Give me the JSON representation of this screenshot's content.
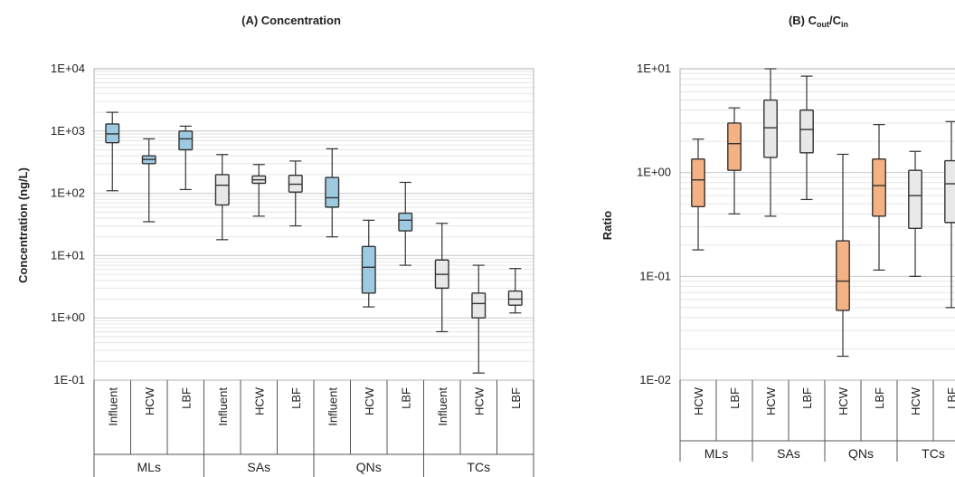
{
  "chart_data": [
    {
      "type": "boxplot",
      "title": "(A) Concentration",
      "ylabel": "Concentration (ng/L)",
      "yscale": "log",
      "ylim": [
        0.1,
        10000
      ],
      "yticks": [
        "1E+04",
        "1E+03",
        "1E+02",
        "1E+01",
        "1E+00",
        "1E-01"
      ],
      "groups": [
        "MLs",
        "SAs",
        "QNs",
        "TCs"
      ],
      "categories": [
        "Influent",
        "HCW",
        "LBF"
      ],
      "colors": {
        "highlight": "#9ecae1",
        "other": "#e8e8e8",
        "stroke": "#333333"
      },
      "boxes": [
        {
          "group": "MLs",
          "category": "Influent",
          "min": 110,
          "q1": 650,
          "median": 900,
          "q3": 1300,
          "max": 2000,
          "highlight": true
        },
        {
          "group": "MLs",
          "category": "HCW",
          "min": 35,
          "q1": 300,
          "median": 350,
          "q3": 400,
          "max": 750,
          "highlight": true
        },
        {
          "group": "MLs",
          "category": "LBF",
          "min": 115,
          "q1": 500,
          "median": 750,
          "q3": 1000,
          "max": 1200,
          "highlight": true
        },
        {
          "group": "SAs",
          "category": "Influent",
          "min": 18,
          "q1": 65,
          "median": 135,
          "q3": 200,
          "max": 420,
          "highlight": false
        },
        {
          "group": "SAs",
          "category": "HCW",
          "min": 43,
          "q1": 145,
          "median": 165,
          "q3": 190,
          "max": 290,
          "highlight": false
        },
        {
          "group": "SAs",
          "category": "LBF",
          "min": 30,
          "q1": 105,
          "median": 140,
          "q3": 195,
          "max": 330,
          "highlight": false
        },
        {
          "group": "QNs",
          "category": "Influent",
          "min": 20,
          "q1": 60,
          "median": 85,
          "q3": 180,
          "max": 520,
          "highlight": true
        },
        {
          "group": "QNs",
          "category": "HCW",
          "min": 1.5,
          "q1": 2.5,
          "median": 6.5,
          "q3": 14,
          "max": 37,
          "highlight": true
        },
        {
          "group": "QNs",
          "category": "LBF",
          "min": 7,
          "q1": 25,
          "median": 37,
          "q3": 48,
          "max": 150,
          "highlight": true
        },
        {
          "group": "TCs",
          "category": "Influent",
          "min": 0.6,
          "q1": 3,
          "median": 5,
          "q3": 8.5,
          "max": 33,
          "highlight": false
        },
        {
          "group": "TCs",
          "category": "HCW",
          "min": 0.13,
          "q1": 1,
          "median": 1.7,
          "q3": 2.5,
          "max": 7,
          "highlight": false
        },
        {
          "group": "TCs",
          "category": "LBF",
          "min": 1.2,
          "q1": 1.6,
          "median": 2,
          "q3": 2.7,
          "max": 6.2,
          "highlight": false
        }
      ]
    },
    {
      "type": "boxplot",
      "title": "(B) Cout/Cin",
      "title_main": "(B) C",
      "title_sub1": "out",
      "title_sep": "/C",
      "title_sub2": "in",
      "ylabel": "Ratio",
      "yscale": "log",
      "ylim": [
        0.01,
        10
      ],
      "yticks": [
        "1E+01",
        "1E+00",
        "1E-01",
        "1E-02"
      ],
      "groups": [
        "MLs",
        "SAs",
        "QNs",
        "TCs"
      ],
      "categories": [
        "HCW",
        "LBF"
      ],
      "colors": {
        "highlight": "#f4b183",
        "other": "#e8e8e8",
        "stroke": "#333333"
      },
      "boxes": [
        {
          "group": "MLs",
          "category": "HCW",
          "min": 0.18,
          "q1": 0.47,
          "median": 0.85,
          "q3": 1.35,
          "max": 2.1,
          "highlight": true
        },
        {
          "group": "MLs",
          "category": "LBF",
          "min": 0.4,
          "q1": 1.05,
          "median": 1.9,
          "q3": 3,
          "max": 4.2,
          "highlight": true
        },
        {
          "group": "SAs",
          "category": "HCW",
          "min": 0.38,
          "q1": 1.4,
          "median": 2.7,
          "q3": 5,
          "max": 10,
          "highlight": false
        },
        {
          "group": "SAs",
          "category": "LBF",
          "min": 0.55,
          "q1": 1.55,
          "median": 2.6,
          "q3": 4,
          "max": 8.5,
          "highlight": false
        },
        {
          "group": "QNs",
          "category": "HCW",
          "min": 0.017,
          "q1": 0.047,
          "median": 0.09,
          "q3": 0.22,
          "max": 1.5,
          "highlight": true
        },
        {
          "group": "QNs",
          "category": "LBF",
          "min": 0.115,
          "q1": 0.38,
          "median": 0.75,
          "q3": 1.35,
          "max": 2.9,
          "highlight": true
        },
        {
          "group": "TCs",
          "category": "HCW",
          "min": 0.1,
          "q1": 0.29,
          "median": 0.6,
          "q3": 1.05,
          "max": 1.6,
          "highlight": false
        },
        {
          "group": "TCs",
          "category": "LBF",
          "min": 0.05,
          "q1": 0.33,
          "median": 0.78,
          "q3": 1.3,
          "max": 3.1,
          "highlight": false
        }
      ]
    }
  ]
}
